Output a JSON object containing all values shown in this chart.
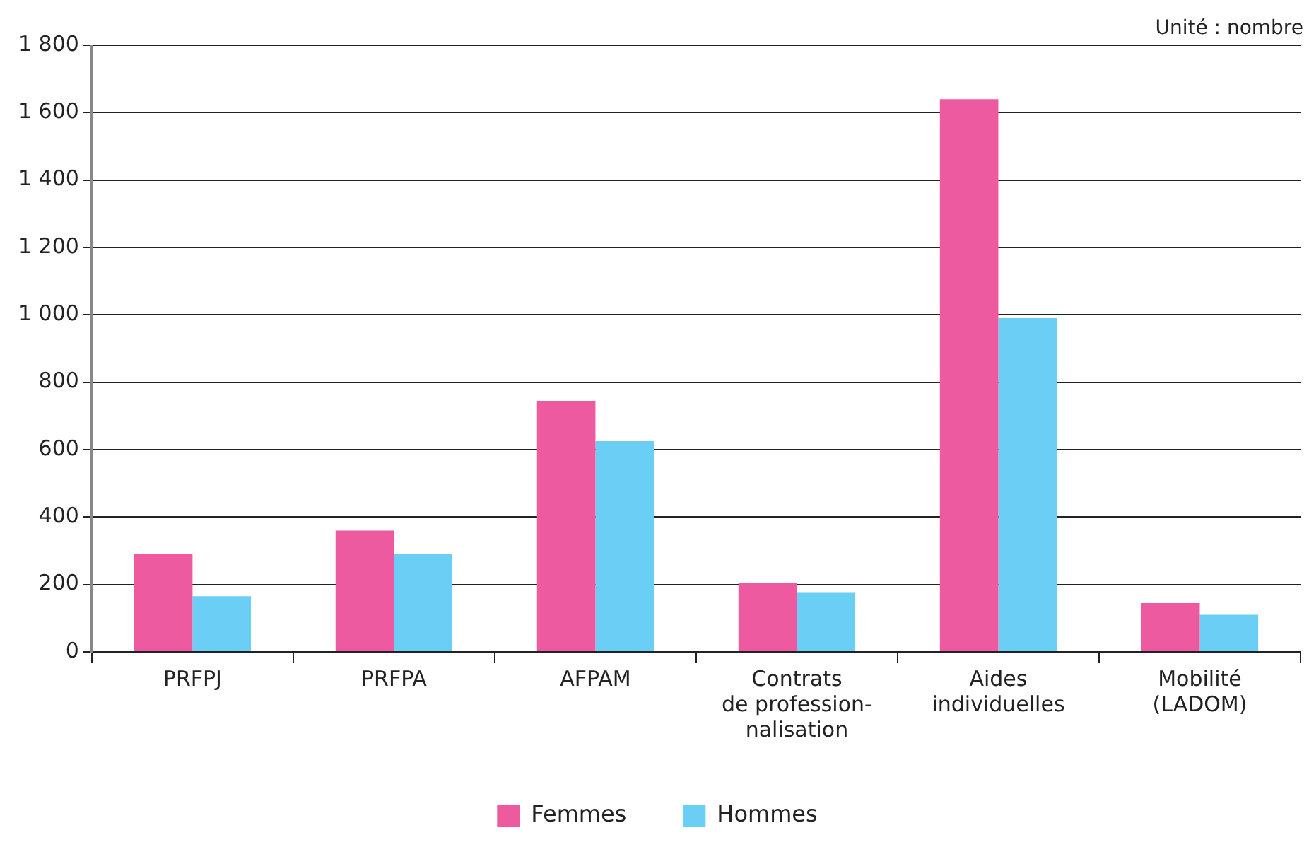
{
  "chart_data": {
    "type": "bar",
    "categories": [
      "PRFPJ",
      "PRFPA",
      "AFPAM",
      "Contrats\nde profession-\nnalisation",
      "Aides\nindividuelles",
      "Mobilité\n(LADOM)"
    ],
    "series": [
      {
        "name": "Femmes",
        "color": "#ee5aa0",
        "values": [
          290,
          360,
          745,
          205,
          1640,
          145
        ]
      },
      {
        "name": "Hommes",
        "color": "#6bcef5",
        "values": [
          165,
          290,
          625,
          175,
          990,
          110
        ]
      }
    ],
    "ylim": [
      0,
      1800
    ],
    "yticks": [
      0,
      200,
      400,
      600,
      800,
      {
        "value": 1000,
        "label": "1 000"
      },
      {
        "value": 1200,
        "label": "1 200"
      },
      {
        "value": 1400,
        "label": "1 400"
      },
      {
        "value": 1600,
        "label": "1 600"
      },
      {
        "value": 1800,
        "label": "1 800"
      }
    ],
    "grid": "y",
    "legend": "bottom",
    "annotations": [
      "Unité : nombre"
    ]
  }
}
